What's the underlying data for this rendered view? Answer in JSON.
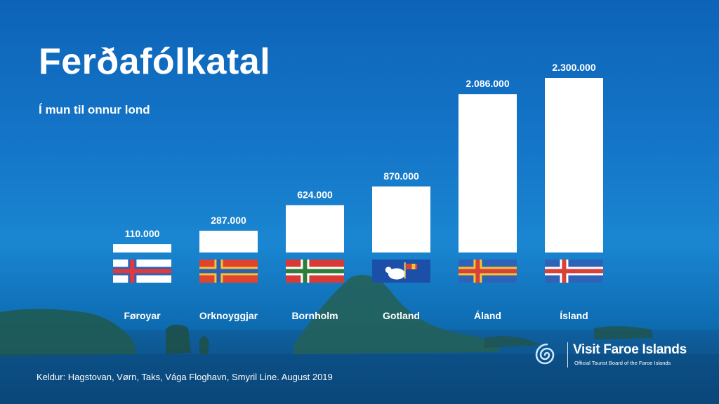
{
  "header": {
    "title": "Ferðafólkatal",
    "subtitle": "Í mun til onnur lond"
  },
  "footer": {
    "source": "Keldur: Hagstovan, Vørn, Taks, Vága Floghavn, Smyril Line. August 2019"
  },
  "brand": {
    "name": "Visit Faroe Islands",
    "tagline": "Official Tourist Board of the Faroe Islands"
  },
  "colors": {
    "bar": "#ffffff",
    "text": "#ffffff",
    "background": "#1577c9"
  },
  "chart_data": {
    "type": "bar",
    "title": "Ferðafólkatal",
    "subtitle": "Í mun til onnur lond",
    "categories": [
      "Føroyar",
      "Orknoyggjar",
      "Bornholm",
      "Gotland",
      "Áland",
      "Ísland"
    ],
    "values": [
      110000,
      287000,
      624000,
      870000,
      2086000,
      2300000
    ],
    "value_labels": [
      "110.000",
      "287.000",
      "624.000",
      "870.000",
      "2.086.000",
      "2.300.000"
    ],
    "flags": [
      "faroe-islands-flag-icon",
      "orkney-flag-icon",
      "bornholm-flag-icon",
      "gotland-flag-icon",
      "aland-flag-icon",
      "iceland-flag-icon"
    ],
    "ylim": [
      0,
      2300000
    ],
    "grid": false,
    "legend": "none",
    "xlabel": "",
    "ylabel": ""
  }
}
